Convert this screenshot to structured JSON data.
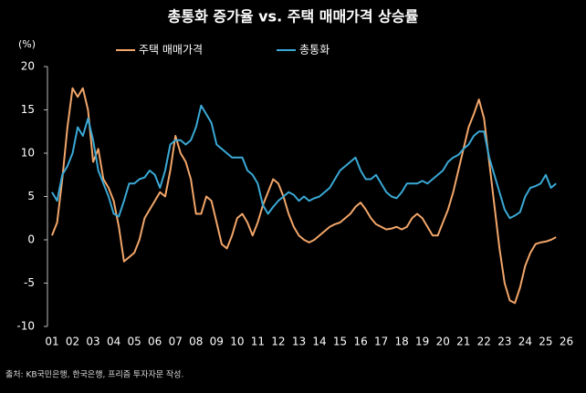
{
  "chart_data": {
    "type": "line",
    "title": "총통화 증가율 vs. 주택 매매가격 상승률",
    "y_unit_label": "(%)",
    "source": "출처: KB국민은행, 한국은행, 프리즘 투자자문 작성.",
    "x": [
      2001,
      2001.25,
      2001.5,
      2001.75,
      2002,
      2002.25,
      2002.5,
      2002.75,
      2003,
      2003.25,
      2003.5,
      2003.75,
      2004,
      2004.25,
      2004.5,
      2004.75,
      2005,
      2005.25,
      2005.5,
      2005.75,
      2006,
      2006.25,
      2006.5,
      2006.75,
      2007,
      2007.25,
      2007.5,
      2007.75,
      2008,
      2008.25,
      2008.5,
      2008.75,
      2009,
      2009.25,
      2009.5,
      2009.75,
      2010,
      2010.25,
      2010.5,
      2010.75,
      2011,
      2011.25,
      2011.5,
      2011.75,
      2012,
      2012.25,
      2012.5,
      2012.75,
      2013,
      2013.25,
      2013.5,
      2013.75,
      2014,
      2014.25,
      2014.5,
      2014.75,
      2015,
      2015.25,
      2015.5,
      2015.75,
      2016,
      2016.25,
      2016.5,
      2016.75,
      2017,
      2017.25,
      2017.5,
      2017.75,
      2018,
      2018.25,
      2018.5,
      2018.75,
      2019,
      2019.25,
      2019.5,
      2019.75,
      2020,
      2020.25,
      2020.5,
      2020.75,
      2021,
      2021.25,
      2021.5,
      2021.75,
      2022,
      2022.25,
      2022.5,
      2022.75,
      2023,
      2023.25,
      2023.5,
      2023.75,
      2024,
      2024.25,
      2024.5,
      2024.75,
      2025,
      2025.25,
      2025.5
    ],
    "series": [
      {
        "name": "주택 매매가격",
        "color": "#f2a66a",
        "values": [
          0.5,
          2,
          7,
          13,
          17.5,
          16.5,
          17.5,
          15,
          9,
          10.5,
          7,
          6,
          4.5,
          1.5,
          -2.5,
          -2,
          -1.5,
          0,
          2.5,
          3.5,
          4.5,
          5.5,
          5,
          8,
          12,
          10,
          9,
          7,
          3,
          3,
          5,
          4.5,
          2,
          -0.5,
          -1,
          0.5,
          2.5,
          3,
          2,
          0.5,
          2,
          4,
          5.5,
          7,
          6.5,
          5,
          3,
          1.5,
          0.5,
          0,
          -0.3,
          0,
          0.5,
          1,
          1.5,
          1.8,
          2,
          2.5,
          3,
          3.8,
          4.3,
          3.5,
          2.5,
          1.8,
          1.5,
          1.2,
          1.3,
          1.5,
          1.2,
          1.5,
          2.5,
          3,
          2.5,
          1.5,
          0.5,
          0.5,
          2,
          3.5,
          5.5,
          8,
          10.5,
          13,
          14.5,
          16.2,
          14,
          9,
          4,
          -1,
          -5,
          -7,
          -7.3,
          -5.5,
          -3,
          -1.5,
          -0.5,
          -0.3,
          -0.2,
          0,
          0.3
        ]
      },
      {
        "name": "총통화",
        "color": "#3aa9d6",
        "values": [
          5.5,
          4.5,
          7.5,
          8.5,
          10,
          13,
          12,
          14,
          11.5,
          8,
          6.5,
          5,
          3,
          2.7,
          4.5,
          6.5,
          6.5,
          7,
          7.2,
          8,
          7.5,
          6,
          8,
          11,
          11.5,
          11.5,
          11,
          11.5,
          13,
          15.5,
          14.5,
          13.5,
          11,
          10.5,
          10,
          9.5,
          9.5,
          9.5,
          8,
          7.5,
          6.5,
          4,
          3,
          3.8,
          4.5,
          5,
          5.5,
          5.2,
          4.5,
          5,
          4.5,
          4.8,
          5,
          5.5,
          6,
          7,
          8,
          8.5,
          9,
          9.5,
          8,
          7,
          7,
          7.5,
          6.5,
          5.5,
          5,
          4.8,
          5.5,
          6.5,
          6.5,
          6.5,
          6.8,
          6.5,
          7,
          7.5,
          8,
          9,
          9.5,
          9.8,
          10.5,
          11,
          12,
          12.5,
          12.5,
          9.5,
          7.5,
          5.5,
          3.5,
          2.5,
          2.8,
          3.2,
          5,
          6,
          6.2,
          6.5,
          7.5,
          6,
          6.5
        ]
      }
    ],
    "xlim": [
      2000.78,
      2026.2
    ],
    "xticks": [
      {
        "value": 2001,
        "label": "01"
      },
      {
        "value": 2002,
        "label": "02"
      },
      {
        "value": 2003,
        "label": "03"
      },
      {
        "value": 2004,
        "label": "04"
      },
      {
        "value": 2005,
        "label": "05"
      },
      {
        "value": 2006,
        "label": "06"
      },
      {
        "value": 2007,
        "label": "07"
      },
      {
        "value": 2008,
        "label": "08"
      },
      {
        "value": 2009,
        "label": "09"
      },
      {
        "value": 2010,
        "label": "10"
      },
      {
        "value": 2011,
        "label": "11"
      },
      {
        "value": 2012,
        "label": "12"
      },
      {
        "value": 2013,
        "label": "13"
      },
      {
        "value": 2014,
        "label": "14"
      },
      {
        "value": 2015,
        "label": "15"
      },
      {
        "value": 2016,
        "label": "16"
      },
      {
        "value": 2017,
        "label": "17"
      },
      {
        "value": 2018,
        "label": "18"
      },
      {
        "value": 2019,
        "label": "19"
      },
      {
        "value": 2020,
        "label": "20"
      },
      {
        "value": 2021,
        "label": "21"
      },
      {
        "value": 2022,
        "label": "22"
      },
      {
        "value": 2023,
        "label": "23"
      },
      {
        "value": 2024,
        "label": "24"
      },
      {
        "value": 2025,
        "label": "25"
      },
      {
        "value": 2026,
        "label": "26"
      }
    ],
    "ylim": [
      -10,
      20
    ],
    "yticks": [
      -10,
      -5,
      0,
      5,
      10,
      15,
      20
    ],
    "grid": false
  }
}
